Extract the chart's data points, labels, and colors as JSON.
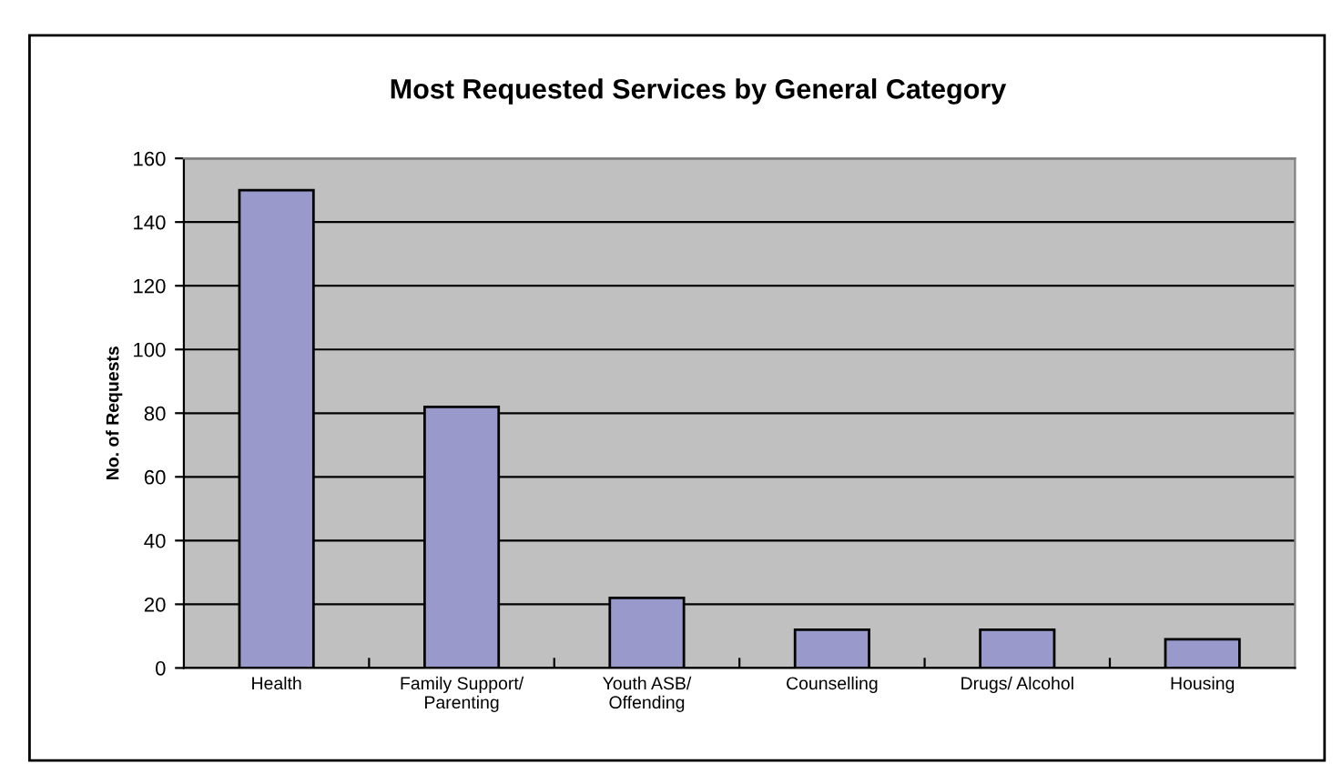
{
  "chart_data": {
    "type": "bar",
    "title": "Most Requested Services by General Category",
    "ylabel": "No. of Requests",
    "categories": [
      "Health",
      "Family Support/\nParenting",
      "Youth ASB/\nOffending",
      "Counselling",
      "Drugs/ Alcohol",
      "Housing"
    ],
    "values": [
      150,
      82,
      22,
      12,
      12,
      9
    ],
    "color": "#9999cc",
    "ylim": [
      0,
      160
    ],
    "yticks": [
      0,
      20,
      40,
      60,
      80,
      100,
      120,
      140,
      160
    ],
    "grid": "y"
  }
}
